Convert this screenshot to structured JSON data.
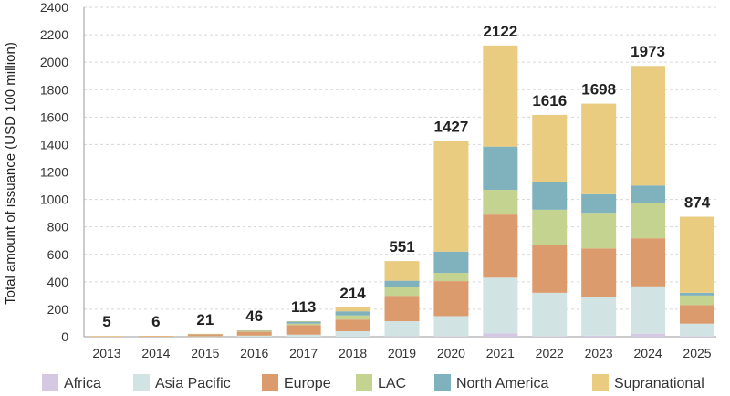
{
  "chart_data": {
    "type": "bar",
    "stacked": true,
    "title": "",
    "xlabel": "",
    "ylabel": "Total amount of issuance (USD 100 million)",
    "ylim": [
      0,
      2400
    ],
    "yticks": [
      0,
      200,
      400,
      600,
      800,
      1000,
      1200,
      1400,
      1600,
      1800,
      2000,
      2200,
      2400
    ],
    "grid": true,
    "legend_position": "bottom",
    "categories": [
      "2013",
      "2014",
      "2015",
      "2016",
      "2017",
      "2018",
      "2019",
      "2020",
      "2021",
      "2022",
      "2023",
      "2024",
      "2025"
    ],
    "totals": [
      5,
      6,
      21,
      46,
      113,
      214,
      551,
      1427,
      2122,
      1616,
      1698,
      1973,
      874
    ],
    "series": [
      {
        "name": "Africa",
        "color": "#d5c8e2",
        "values": [
          0,
          0,
          0,
          0,
          0,
          0,
          3,
          5,
          25,
          5,
          8,
          22,
          5
        ]
      },
      {
        "name": "Asia Pacific",
        "color": "#d2e3e3",
        "values": [
          0,
          0,
          3,
          8,
          15,
          40,
          110,
          145,
          405,
          315,
          280,
          345,
          90
        ]
      },
      {
        "name": "Europe",
        "color": "#db9b6d",
        "values": [
          4,
          5,
          14,
          28,
          70,
          85,
          185,
          255,
          460,
          350,
          355,
          350,
          135
        ]
      },
      {
        "name": "LAC",
        "color": "#c5d391",
        "values": [
          0,
          0,
          2,
          4,
          10,
          30,
          65,
          60,
          180,
          255,
          260,
          255,
          70
        ]
      },
      {
        "name": "North America",
        "color": "#7fb2bc",
        "values": [
          0,
          0,
          1,
          5,
          15,
          30,
          45,
          155,
          315,
          200,
          135,
          130,
          20
        ]
      },
      {
        "name": "Supranational",
        "color": "#e9cc80",
        "values": [
          1,
          1,
          1,
          1,
          3,
          29,
          143,
          807,
          737,
          491,
          660,
          871,
          554
        ]
      }
    ]
  }
}
